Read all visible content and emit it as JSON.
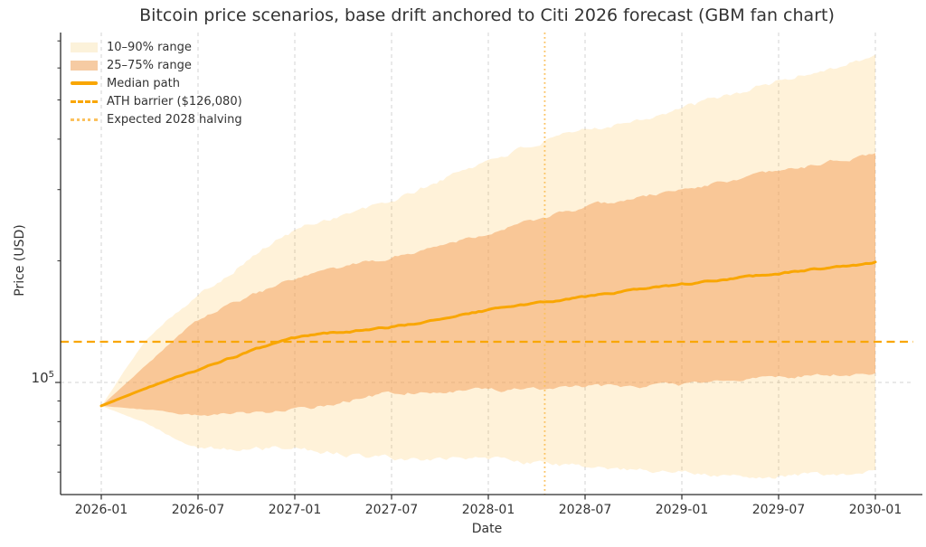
{
  "chart_data": {
    "type": "area",
    "subtype": "fan-chart-with-median-line",
    "title": "Bitcoin price scenarios, base drift anchored to Citi 2026 forecast (GBM fan chart)",
    "xlabel": "Date",
    "ylabel": "Price (USD)",
    "y_scale": "log10",
    "x_tick_labels": [
      "2026-01",
      "2026-07",
      "2027-01",
      "2027-07",
      "2028-01",
      "2028-07",
      "2029-01",
      "2029-07",
      "2030-01"
    ],
    "x_tick_months": [
      0,
      6,
      12,
      18,
      24,
      30,
      36,
      42,
      48
    ],
    "months_from_2026_01": [
      0,
      3,
      6,
      12,
      18,
      24,
      30,
      36,
      42,
      48
    ],
    "series": [
      {
        "name": "90th percentile (top of 10–90% range)",
        "role": "p90",
        "values_usd": [
          87500,
          130000,
          164000,
          237000,
          281000,
          355000,
          419000,
          476000,
          556000,
          642000
        ]
      },
      {
        "name": "75th percentile (top of 25–75% range)",
        "role": "p75",
        "values_usd": [
          87500,
          112500,
          142000,
          179000,
          204000,
          235000,
          270000,
          300000,
          332000,
          368000
        ]
      },
      {
        "name": "Median path",
        "role": "median",
        "values_usd": [
          87500,
          97500,
          107500,
          128500,
          137000,
          151000,
          163000,
          174500,
          186000,
          198500
        ]
      },
      {
        "name": "25th percentile (bottom of 25–75% range)",
        "role": "p25",
        "values_usd": [
          87500,
          85500,
          83000,
          85500,
          94000,
          95500,
          97500,
          98500,
          103000,
          105300
        ]
      },
      {
        "name": "10th percentile (bottom of 10–90% range)",
        "role": "p10",
        "values_usd": [
          87500,
          78500,
          69200,
          68500,
          64700,
          64500,
          61600,
          60100,
          58900,
          59700
        ]
      }
    ],
    "ath_barrier_usd": 126080,
    "halving_month_from_2026_01": 27.5,
    "halving_date_approx": "2028-04",
    "xlim_months": [
      -2.52,
      50.36
    ],
    "ylim_usd": [
      52800,
      733000
    ],
    "grid": "dashed gray, vertical at each x tick, horizontal at 1e5",
    "legend_position": "upper left, no frame"
  },
  "axes": {
    "y": {
      "tick_base": "10",
      "tick_exponent": "5",
      "tick_value_usd": 100000
    }
  },
  "legend": {
    "items": [
      {
        "label": "10–90% range",
        "type": "band",
        "color": "#FCF2DA"
      },
      {
        "label": "25–75% range",
        "type": "band",
        "color": "#F6CBA3"
      },
      {
        "label": "Median path",
        "type": "solid-line",
        "color": "#F9A602"
      },
      {
        "label": "ATH barrier ($126,080)",
        "type": "dashed-line",
        "color": "#F9A602"
      },
      {
        "label": "Expected 2028 halving",
        "type": "dotted-line",
        "color": "#FBC15E"
      }
    ]
  },
  "colors": {
    "median_line": "#F9A602",
    "ath_barrier_line": "#F9A602",
    "halving_line": "#FBC15E",
    "band_10_90_fill": "rgba(255,165,0,0.15)",
    "band_25_75_fill": "rgba(244,164,96,0.55)",
    "grid_line": "#c9c9c9",
    "axis_spine": "#2b2b2b",
    "tick_label": "#333333"
  }
}
